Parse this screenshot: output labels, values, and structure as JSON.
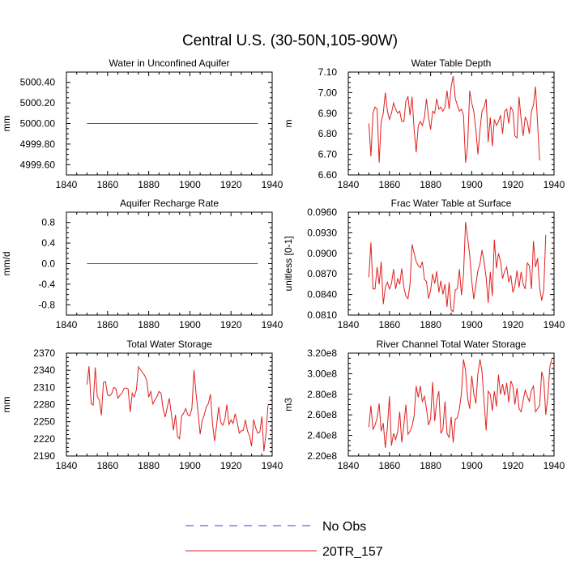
{
  "figure": {
    "title": "Central U.S. (30-50N,105-90W)",
    "legend": [
      {
        "label": "No Obs",
        "color": "#4040c0",
        "style": "dashed"
      },
      {
        "label": "20TR_157",
        "color": "#e02020",
        "style": "solid"
      }
    ]
  },
  "chart_data": [
    {
      "type": "line",
      "title": "Water in Unconfined Aquifer",
      "xlabel": "",
      "ylabel": "mm",
      "xlim": [
        1840,
        1940
      ],
      "ylim": [
        4999.5,
        5000.5
      ],
      "xticks": [
        1840,
        1860,
        1880,
        1900,
        1920,
        1940
      ],
      "xtick_labels": [
        "1840",
        "1860",
        "1880",
        "1900",
        "1920",
        "1940"
      ],
      "yticks": [
        4999.6,
        4999.8,
        5000.0,
        5000.2,
        5000.4
      ],
      "ytick_labels": [
        "4999.60",
        "4999.80",
        "5000.00",
        "5000.20",
        "5000.40"
      ],
      "series": [
        {
          "name": "20TR_157",
          "color": "#e02020",
          "x": [
            1850,
            1933
          ],
          "values": [
            5000.0,
            5000.0
          ]
        }
      ]
    },
    {
      "type": "line",
      "title": "Water Table Depth",
      "xlabel": "",
      "ylabel": "m",
      "xlim": [
        1840,
        1940
      ],
      "ylim": [
        6.6,
        7.1
      ],
      "xticks": [
        1840,
        1860,
        1880,
        1900,
        1920,
        1940
      ],
      "xtick_labels": [
        "1840",
        "1860",
        "1880",
        "1900",
        "1920",
        "1940"
      ],
      "yticks": [
        6.6,
        6.7,
        6.8,
        6.9,
        7.0,
        7.1
      ],
      "ytick_labels": [
        "6.60",
        "6.70",
        "6.80",
        "6.90",
        "7.00",
        "7.10"
      ],
      "series": [
        {
          "name": "20TR_157",
          "color": "#e02020",
          "x_start": 1850,
          "values": [
            6.85,
            6.69,
            6.9,
            6.93,
            6.92,
            6.66,
            6.86,
            6.9,
            7.0,
            6.91,
            6.87,
            6.9,
            6.95,
            6.92,
            6.9,
            6.91,
            6.86,
            6.86,
            6.96,
            6.98,
            6.89,
            6.98,
            6.82,
            6.71,
            6.84,
            6.86,
            6.84,
            6.88,
            6.97,
            6.88,
            6.82,
            6.91,
            6.9,
            6.97,
            6.92,
            6.93,
            6.91,
            6.93,
            7.01,
            6.92,
            7.03,
            7.08,
            6.97,
            6.94,
            6.91,
            6.92,
            6.89,
            6.66,
            6.74,
            7.01,
            6.95,
            6.91,
            6.82,
            6.7,
            6.82,
            6.91,
            6.93,
            6.97,
            6.76,
            6.88,
            6.74,
            6.87,
            6.84,
            6.86,
            6.89,
            6.8,
            6.91,
            6.92,
            6.85,
            6.93,
            6.91,
            6.79,
            6.78,
            6.98,
            6.87,
            6.79,
            6.88,
            6.86,
            6.8,
            6.91,
            6.94,
            7.03,
            6.85,
            6.67
          ]
        }
      ]
    },
    {
      "type": "line",
      "title": "Aquifer Recharge Rate",
      "xlabel": "",
      "ylabel": "mm/d",
      "xlim": [
        1840,
        1940
      ],
      "ylim": [
        -1.0,
        1.0
      ],
      "xticks": [
        1840,
        1860,
        1880,
        1900,
        1920,
        1940
      ],
      "xtick_labels": [
        "1840",
        "1860",
        "1880",
        "1900",
        "1920",
        "1940"
      ],
      "yticks": [
        -0.8,
        -0.4,
        0.0,
        0.4,
        0.8
      ],
      "ytick_labels": [
        "-0.8",
        "-0.4",
        "0.0",
        "0.4",
        "0.8"
      ],
      "series": [
        {
          "name": "20TR_157",
          "color": "#e02020",
          "x": [
            1850,
            1933
          ],
          "values": [
            0.0,
            0.0
          ]
        }
      ]
    },
    {
      "type": "line",
      "title": "Frac Water Table at Surface",
      "xlabel": "",
      "ylabel": "unitless [0-1]",
      "xlim": [
        1840,
        1940
      ],
      "ylim": [
        0.081,
        0.096
      ],
      "xticks": [
        1840,
        1860,
        1880,
        1900,
        1920,
        1940
      ],
      "xtick_labels": [
        "1840",
        "1860",
        "1880",
        "1900",
        "1920",
        "1940"
      ],
      "yticks": [
        0.081,
        0.084,
        0.087,
        0.09,
        0.093,
        0.096
      ],
      "ytick_labels": [
        "0.0810",
        "0.0840",
        "0.0870",
        "0.0900",
        "0.0930",
        "0.0960"
      ],
      "series": [
        {
          "name": "20TR_157",
          "color": "#e02020",
          "x_start": 1850,
          "values": [
            0.0865,
            0.0916,
            0.0848,
            0.0848,
            0.088,
            0.0855,
            0.0888,
            0.0826,
            0.085,
            0.0858,
            0.0848,
            0.0856,
            0.0877,
            0.0848,
            0.0863,
            0.0855,
            0.0878,
            0.085,
            0.0838,
            0.0834,
            0.0855,
            0.0913,
            0.09,
            0.0888,
            0.0882,
            0.0879,
            0.0888,
            0.0862,
            0.0859,
            0.0834,
            0.0846,
            0.087,
            0.0856,
            0.0874,
            0.0843,
            0.086,
            0.084,
            0.0855,
            0.0822,
            0.0858,
            0.0817,
            0.0815,
            0.0847,
            0.0848,
            0.0877,
            0.0839,
            0.0868,
            0.0946,
            0.0923,
            0.0897,
            0.086,
            0.0833,
            0.0854,
            0.0875,
            0.0885,
            0.0905,
            0.0888,
            0.0865,
            0.0828,
            0.0873,
            0.0838,
            0.092,
            0.0878,
            0.09,
            0.0888,
            0.0863,
            0.0874,
            0.088,
            0.0858,
            0.0868,
            0.0843,
            0.0853,
            0.0875,
            0.085,
            0.0873,
            0.0855,
            0.0848,
            0.0886,
            0.0882,
            0.0848,
            0.0918,
            0.088,
            0.0893,
            0.085,
            0.0831,
            0.0847,
            0.0927
          ]
        }
      ]
    },
    {
      "type": "line",
      "title": "Total Water Storage",
      "xlabel": "",
      "ylabel": "mm",
      "xlim": [
        1840,
        1940
      ],
      "ylim": [
        2190,
        2370
      ],
      "xticks": [
        1840,
        1860,
        1880,
        1900,
        1920,
        1940
      ],
      "xtick_labels": [
        "1840",
        "1860",
        "1880",
        "1900",
        "1920",
        "1940"
      ],
      "yticks": [
        2190,
        2220,
        2250,
        2280,
        2310,
        2340,
        2370
      ],
      "ytick_labels": [
        "2190",
        "2220",
        "2250",
        "2280",
        "2310",
        "2340",
        "2370"
      ],
      "series": [
        {
          "name": "20TR_157",
          "color": "#e02020",
          "x_start": 1850,
          "values": [
            2315,
            2347,
            2282,
            2279,
            2345,
            2294,
            2288,
            2261,
            2319,
            2320,
            2297,
            2295,
            2299,
            2310,
            2308,
            2291,
            2296,
            2300,
            2308,
            2309,
            2307,
            2267,
            2300,
            2293,
            2306,
            2346,
            2341,
            2336,
            2331,
            2323,
            2293,
            2303,
            2281,
            2288,
            2294,
            2303,
            2300,
            2272,
            2258,
            2275,
            2291,
            2264,
            2235,
            2262,
            2224,
            2220,
            2260,
            2265,
            2273,
            2262,
            2260,
            2273,
            2340,
            2300,
            2265,
            2228,
            2252,
            2262,
            2276,
            2282,
            2298,
            2248,
            2216,
            2244,
            2276,
            2249,
            2244,
            2254,
            2280,
            2245,
            2253,
            2247,
            2264,
            2250,
            2230,
            2234,
            2235,
            2253,
            2234,
            2225,
            2207,
            2254,
            2239,
            2230,
            2232,
            2259,
            2198,
            2230,
            2279
          ]
        }
      ]
    },
    {
      "type": "line",
      "title": "River Channel Total Water Storage",
      "xlabel": "",
      "ylabel": "m3",
      "xlim": [
        1840,
        1940
      ],
      "ylim": [
        220000000.0,
        320000000.0
      ],
      "xticks": [
        1840,
        1860,
        1880,
        1900,
        1920,
        1940
      ],
      "xtick_labels": [
        "1840",
        "1860",
        "1880",
        "1900",
        "1920",
        "1940"
      ],
      "yticks": [
        220000000.0,
        240000000.0,
        260000000.0,
        280000000.0,
        300000000.0,
        320000000.0
      ],
      "ytick_labels": [
        "2.20e8",
        "2.40e8",
        "2.60e8",
        "2.80e8",
        "3.00e8",
        "3.20e8"
      ],
      "series": [
        {
          "name": "20TR_157",
          "color": "#e02020",
          "x_start": 1850,
          "values": [
            248000000.0,
            269000000.0,
            246000000.0,
            250000000.0,
            257000000.0,
            271000000.0,
            244000000.0,
            252000000.0,
            228000000.0,
            248000000.0,
            278000000.0,
            230000000.0,
            242000000.0,
            236000000.0,
            244000000.0,
            263000000.0,
            233000000.0,
            250000000.0,
            270000000.0,
            241000000.0,
            244000000.0,
            249000000.0,
            259000000.0,
            288000000.0,
            277000000.0,
            288000000.0,
            273000000.0,
            278000000.0,
            266000000.0,
            250000000.0,
            256000000.0,
            292000000.0,
            254000000.0,
            274000000.0,
            283000000.0,
            242000000.0,
            246000000.0,
            273000000.0,
            242000000.0,
            238000000.0,
            258000000.0,
            233000000.0,
            256000000.0,
            257000000.0,
            266000000.0,
            281000000.0,
            314000000.0,
            303000000.0,
            276000000.0,
            266000000.0,
            298000000.0,
            281000000.0,
            271000000.0,
            300000000.0,
            314000000.0,
            302000000.0,
            273000000.0,
            245000000.0,
            283000000.0,
            280000000.0,
            264000000.0,
            283000000.0,
            268000000.0,
            299000000.0,
            280000000.0,
            290000000.0,
            279000000.0,
            291000000.0,
            272000000.0,
            293000000.0,
            288000000.0,
            270000000.0,
            286000000.0,
            266000000.0,
            263000000.0,
            274000000.0,
            284000000.0,
            278000000.0,
            273000000.0,
            284000000.0,
            288000000.0,
            263000000.0,
            266000000.0,
            269000000.0,
            302000000.0,
            294000000.0,
            260000000.0,
            278000000.0,
            307000000.0,
            315000000.0
          ]
        }
      ]
    }
  ]
}
